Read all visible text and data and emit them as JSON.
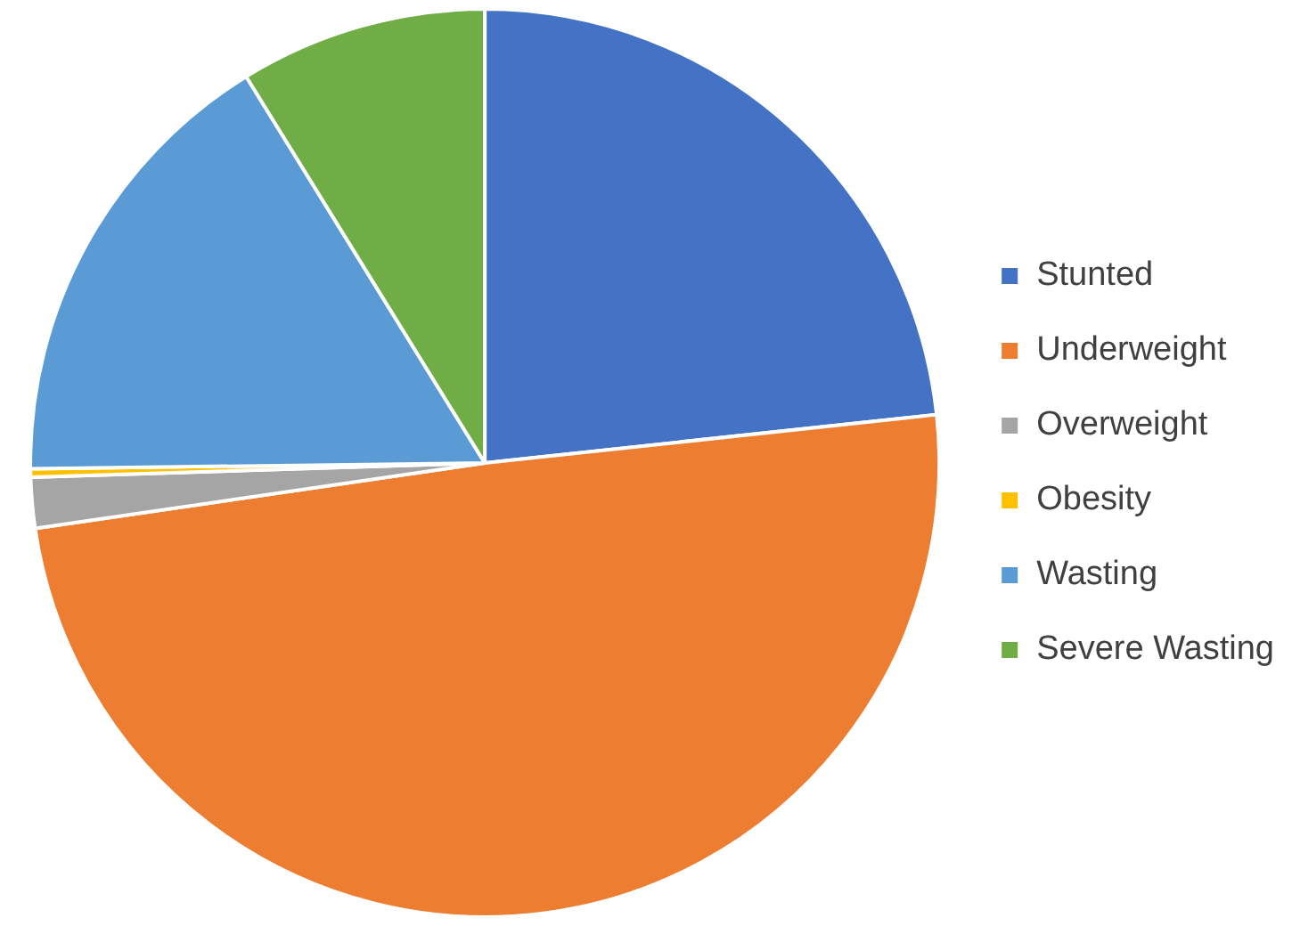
{
  "chart_data": {
    "type": "pie",
    "categories": [
      "Stunted",
      "Underweight",
      "Overweight",
      "Obesity",
      "Wasting",
      "Severe Wasting"
    ],
    "values": [
      23.3,
      49.4,
      1.8,
      0.3,
      16.4,
      8.8
    ],
    "colors": [
      "#4472c4",
      "#ed7d31",
      "#a5a5a5",
      "#ffc000",
      "#5b9bd5",
      "#70ad47"
    ],
    "legend": "right"
  }
}
